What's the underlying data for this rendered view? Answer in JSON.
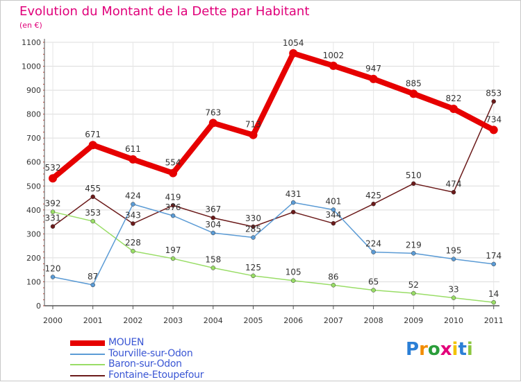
{
  "title": "Evolution du Montant de la Dette par Habitant",
  "unit": "(en €)",
  "logo": {
    "text": "Proxiti",
    "letter_colors": [
      "#2b7fd6",
      "#f28c00",
      "#2a9d3a",
      "#e3007a",
      "#f2c200",
      "#2b7fd6",
      "#8cc63f"
    ]
  },
  "chart_data": {
    "type": "line",
    "x": [
      "2000",
      "2001",
      "2002",
      "2003",
      "2004",
      "2005",
      "2006",
      "2007",
      "2008",
      "2009",
      "2010",
      "2011"
    ],
    "ylim": [
      0,
      1100
    ],
    "yticks": [
      0,
      100,
      200,
      300,
      400,
      500,
      600,
      700,
      800,
      900,
      1000,
      1100
    ],
    "grid": true,
    "legend": "bottom-left",
    "series": [
      {
        "name": "Fontaine-Etoupefour",
        "color": "#6b1a1a",
        "values": [
          331,
          455,
          343,
          419,
          367,
          330,
          391,
          344,
          425,
          510,
          474,
          853
        ],
        "labels": [
          "331",
          "455",
          "343",
          "419",
          "367",
          "330",
          "",
          "344",
          "425",
          "510",
          "474",
          "853"
        ]
      },
      {
        "name": "Baron-sur-Odon",
        "color": "#99dd66",
        "values": [
          392,
          353,
          228,
          197,
          158,
          125,
          105,
          86,
          65,
          52,
          33,
          14
        ],
        "labels": [
          "392",
          "353",
          "228",
          "197",
          "158",
          "125",
          "105",
          "86",
          "65",
          "52",
          "33",
          "14"
        ]
      },
      {
        "name": "Tourville-sur-Odon",
        "color": "#5b9bd5",
        "values": [
          120,
          87,
          424,
          376,
          304,
          285,
          431,
          401,
          224,
          219,
          195,
          174
        ],
        "labels": [
          "120",
          "87",
          "424",
          "376",
          "304",
          "285",
          "431",
          "401",
          "224",
          "219",
          "195",
          "174"
        ]
      },
      {
        "name": "MOUEN",
        "color": "#e60000",
        "values": [
          532,
          671,
          611,
          554,
          763,
          713,
          1054,
          1002,
          947,
          885,
          822,
          734
        ],
        "labels": [
          "532",
          "671",
          "611",
          "554",
          "763",
          "713",
          "1054",
          "1002",
          "947",
          "885",
          "822",
          "734"
        ]
      }
    ]
  }
}
